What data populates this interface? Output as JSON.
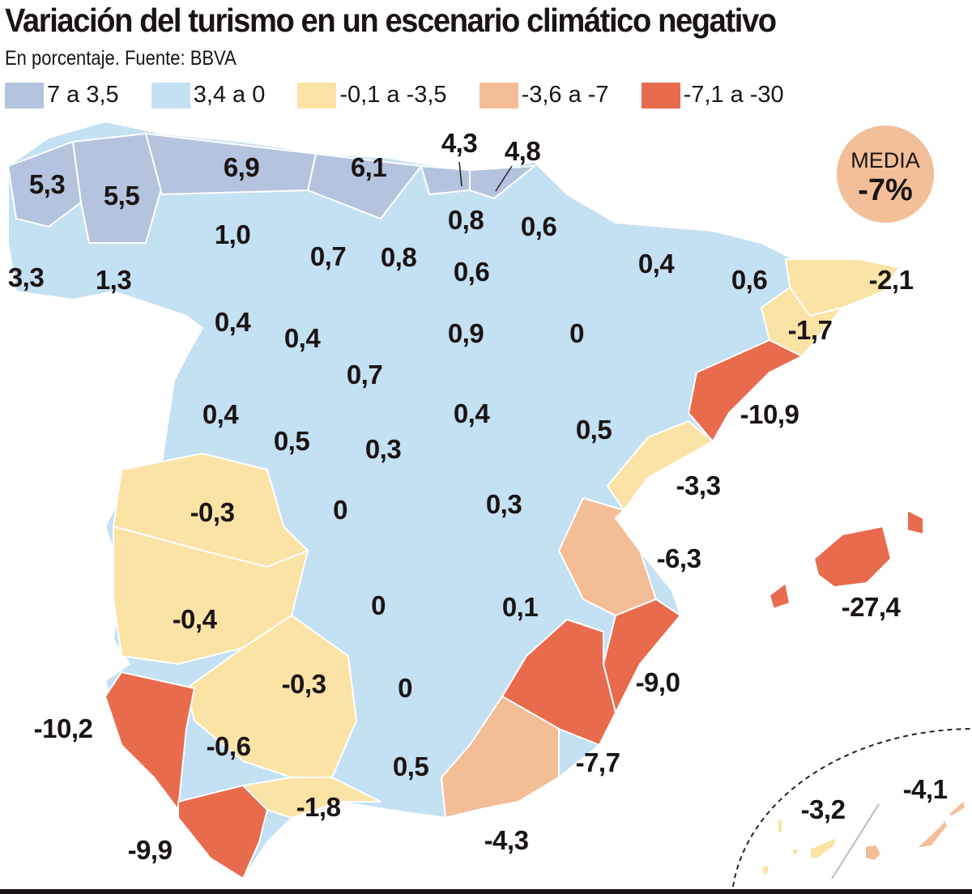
{
  "title": "Variación del turismo en un escenario climático negativo",
  "subtitle": "En porcentaje. Fuente: BBVA",
  "legend": [
    {
      "label": "7 a 3,5",
      "color": "#b4c4de"
    },
    {
      "label": "3,4 a 0",
      "color": "#c4e0f3"
    },
    {
      "label": "-0,1 a -3,5",
      "color": "#fbe3a6"
    },
    {
      "label": "-3,6 a -7",
      "color": "#f3bd96"
    },
    {
      "label": "-7,1 a -30",
      "color": "#e86b4e"
    }
  ],
  "media": {
    "label": "MEDIA",
    "value": "-7%"
  },
  "regions": [
    "5,3",
    "5,5",
    "6,9",
    "6,1",
    "4,3",
    "4,8",
    "3,3",
    "1,3",
    "1,0",
    "0,7",
    "0,8",
    "0,8",
    "0,6",
    "0,6",
    "0,4",
    "0,6",
    "-2,1",
    "0,4",
    "0,4",
    "0,9",
    "0",
    "-1,7",
    "0,7",
    "0,4",
    "0,5",
    "0,3",
    "0,4",
    "0,5",
    "-10,9",
    "-3,3",
    "-0,3",
    "0",
    "0,3",
    "-6,3",
    "-27,4",
    "0",
    "0,1",
    "-0,4",
    "-0,3",
    "0",
    "-9,0",
    "-10,2",
    "-0,6",
    "-7,7",
    "0,5",
    "-1,8",
    "-9,9",
    "-4,3",
    "-3,2",
    "-4,1"
  ]
}
